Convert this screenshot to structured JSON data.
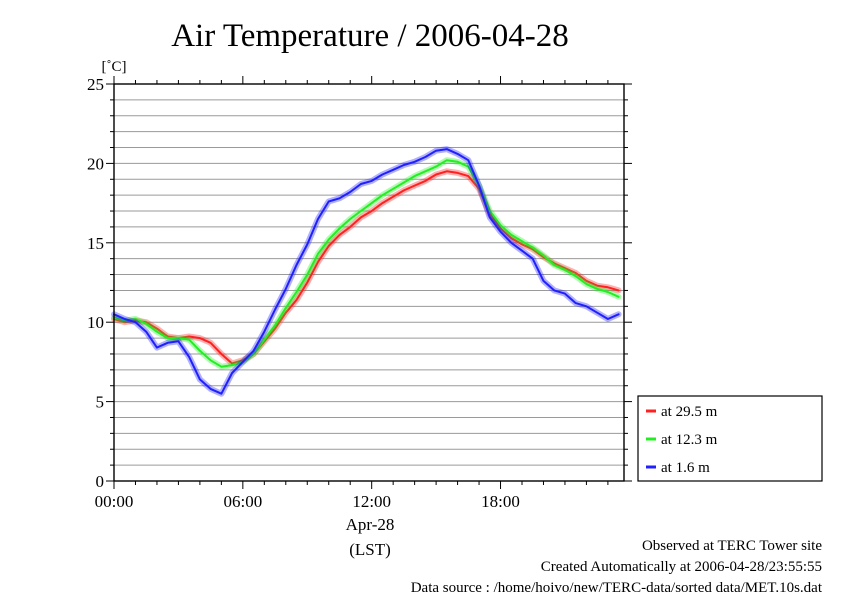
{
  "chart_data": {
    "type": "line",
    "title": "Air Temperature / 2006-04-28",
    "ylabel": "[˚C]",
    "ylim": [
      0,
      25
    ],
    "y_ticks": [
      "0",
      "5",
      "10",
      "15",
      "20",
      "25"
    ],
    "y_tick_values": [
      0,
      5,
      10,
      15,
      20,
      25
    ],
    "xlim": [
      0,
      23.75
    ],
    "x_ticks": [
      "00:00",
      "06:00",
      "12:00",
      "18:00"
    ],
    "x_tick_values": [
      0,
      6,
      12,
      18
    ],
    "x_date_label": "Apr-28",
    "x_unit_label": "(LST)",
    "grid": true,
    "legend_position": "right",
    "series": [
      {
        "name": "at 29.5 m",
        "color": "#ff2020",
        "x": [
          0,
          0.5,
          1,
          1.5,
          2,
          2.5,
          3,
          3.5,
          4,
          4.5,
          5,
          5.5,
          6,
          6.5,
          7,
          7.5,
          8,
          8.5,
          9,
          9.5,
          10,
          10.5,
          11,
          11.5,
          12,
          12.5,
          13,
          13.5,
          14,
          14.5,
          15,
          15.5,
          16,
          16.5,
          17,
          17.5,
          18,
          18.5,
          19,
          19.5,
          20,
          20.5,
          21,
          21.5,
          22,
          22.5,
          23,
          23.5
        ],
        "y": [
          10.2,
          10.0,
          10.1,
          10.0,
          9.6,
          9.1,
          9.0,
          9.1,
          9.0,
          8.7,
          8.0,
          7.4,
          7.6,
          8.0,
          8.8,
          9.6,
          10.6,
          11.4,
          12.5,
          13.8,
          14.8,
          15.5,
          16.0,
          16.6,
          17.0,
          17.5,
          17.9,
          18.3,
          18.6,
          18.9,
          19.3,
          19.5,
          19.4,
          19.2,
          18.4,
          16.8,
          15.9,
          15.3,
          14.9,
          14.6,
          14.1,
          13.7,
          13.4,
          13.1,
          12.6,
          12.3,
          12.2,
          12.0
        ]
      },
      {
        "name": "at 12.3 m",
        "color": "#22ee22",
        "x": [
          0,
          0.5,
          1,
          1.5,
          2,
          2.5,
          3,
          3.5,
          4,
          4.5,
          5,
          5.5,
          6,
          6.5,
          7,
          7.5,
          8,
          8.5,
          9,
          9.5,
          10,
          10.5,
          11,
          11.5,
          12,
          12.5,
          13,
          13.5,
          14,
          14.5,
          15,
          15.5,
          16,
          16.5,
          17,
          17.5,
          18,
          18.5,
          19,
          19.5,
          20,
          20.5,
          21,
          21.5,
          22,
          22.5,
          23,
          23.5
        ],
        "y": [
          10.3,
          10.1,
          10.2,
          9.9,
          9.4,
          9.0,
          9.0,
          8.9,
          8.2,
          7.6,
          7.2,
          7.3,
          7.5,
          8.0,
          8.9,
          9.8,
          10.9,
          11.9,
          13.0,
          14.3,
          15.2,
          15.9,
          16.5,
          17.0,
          17.5,
          18.0,
          18.4,
          18.8,
          19.2,
          19.5,
          19.8,
          20.2,
          20.1,
          19.8,
          18.6,
          17.0,
          16.1,
          15.5,
          15.1,
          14.7,
          14.2,
          13.6,
          13.3,
          12.9,
          12.4,
          12.1,
          11.9,
          11.6
        ]
      },
      {
        "name": "at 1.6 m",
        "color": "#2020ff",
        "x": [
          0,
          0.5,
          1,
          1.5,
          2,
          2.5,
          3,
          3.5,
          4,
          4.5,
          5,
          5.5,
          6,
          6.5,
          7,
          7.5,
          8,
          8.5,
          9,
          9.5,
          10,
          10.5,
          11,
          11.5,
          12,
          12.5,
          13,
          13.5,
          14,
          14.5,
          15,
          15.5,
          16,
          16.5,
          17,
          17.5,
          18,
          18.5,
          19,
          19.5,
          20,
          20.5,
          21,
          21.5,
          22,
          22.5,
          23,
          23.5
        ],
        "y": [
          10.5,
          10.2,
          10.0,
          9.4,
          8.4,
          8.7,
          8.8,
          7.8,
          6.4,
          5.8,
          5.5,
          6.8,
          7.5,
          8.2,
          9.4,
          10.8,
          12.1,
          13.6,
          14.9,
          16.5,
          17.6,
          17.8,
          18.2,
          18.7,
          18.9,
          19.3,
          19.6,
          19.9,
          20.1,
          20.4,
          20.8,
          20.9,
          20.6,
          20.2,
          18.6,
          16.6,
          15.7,
          15.0,
          14.5,
          14.0,
          12.6,
          12.0,
          11.8,
          11.2,
          11.0,
          10.6,
          10.2,
          10.5
        ]
      }
    ]
  },
  "footer": {
    "site": "Observed at TERC Tower site",
    "created": "Created Automatically at 2006-04-28/23:55:55",
    "source": "Data source : /home/hoivo/new/TERC-data/sorted  data/MET.10s.dat"
  }
}
